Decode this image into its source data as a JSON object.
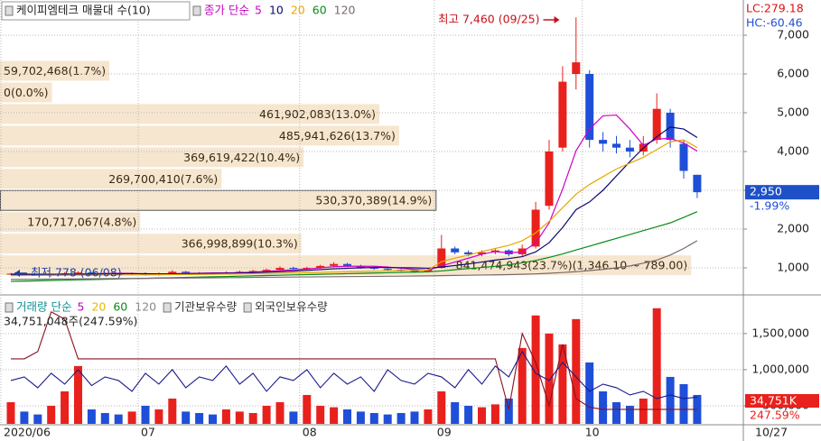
{
  "header": {
    "title": "케이피엠테크 매물대 수(10)"
  },
  "chart_data": [
    {
      "type": "candlestick",
      "legend_prefix": "종가 단순",
      "open": [
        840,
        850,
        830,
        810,
        820,
        860,
        880,
        860,
        850,
        840,
        860,
        820,
        850,
        900,
        870,
        860,
        850,
        880,
        900,
        920,
        950,
        1000,
        980,
        1000,
        1050,
        1100,
        1050,
        1000,
        980,
        950,
        930,
        900,
        1000,
        1500,
        1400,
        1350,
        1400,
        1450,
        1350,
        1550,
        2600,
        4100,
        6000,
        6000,
        4300,
        4200,
        4100,
        4000,
        4300,
        5000,
        4200,
        3400
      ],
      "high": [
        870,
        860,
        840,
        850,
        890,
        910,
        890,
        880,
        870,
        880,
        880,
        880,
        940,
        920,
        890,
        880,
        910,
        930,
        950,
        980,
        1040,
        1030,
        1030,
        1080,
        1150,
        1130,
        1080,
        1030,
        1000,
        970,
        950,
        980,
        1850,
        1550,
        1450,
        1450,
        1500,
        1480,
        1600,
        2700,
        4300,
        6200,
        7460,
        6100,
        4500,
        4400,
        4300,
        4400,
        5500,
        5100,
        4300,
        3400
      ],
      "low": [
        820,
        800,
        790,
        778,
        820,
        840,
        830,
        820,
        810,
        820,
        800,
        800,
        830,
        850,
        830,
        820,
        830,
        860,
        880,
        900,
        930,
        950,
        950,
        980,
        1020,
        1020,
        980,
        950,
        920,
        900,
        870,
        880,
        980,
        1350,
        1300,
        1300,
        1350,
        1300,
        1300,
        1500,
        2500,
        4000,
        5600,
        4100,
        4000,
        3950,
        3850,
        3900,
        4200,
        4100,
        3300,
        2800
      ],
      "close": [
        850,
        830,
        810,
        820,
        860,
        880,
        860,
        850,
        840,
        860,
        820,
        850,
        900,
        870,
        860,
        850,
        880,
        900,
        920,
        950,
        1000,
        980,
        1000,
        1050,
        1100,
        1050,
        1000,
        980,
        950,
        930,
        900,
        950,
        1500,
        1400,
        1350,
        1400,
        1450,
        1350,
        1500,
        2500,
        4000,
        5800,
        6300,
        4300,
        4200,
        4100,
        4000,
        4200,
        5100,
        4300,
        3500,
        2950
      ],
      "up_color": "#e8211d",
      "down_color": "#1f4fd8",
      "series": [
        {
          "name": "5",
          "color": "#d000c8",
          "values": [
            840,
            840,
            835,
            830,
            835,
            840,
            845,
            855,
            860,
            855,
            845,
            840,
            850,
            855,
            860,
            870,
            870,
            875,
            890,
            910,
            930,
            950,
            970,
            1000,
            1030,
            1040,
            1040,
            1040,
            1020,
            990,
            960,
            940,
            1050,
            1150,
            1250,
            1350,
            1420,
            1390,
            1410,
            1640,
            2160,
            3030,
            4020,
            4580,
            4920,
            4940,
            4580,
            4160,
            4320,
            4340,
            4220,
            4010
          ]
        },
        {
          "name": "10",
          "color": "#0a0a70",
          "values": [
            830,
            832,
            834,
            835,
            836,
            838,
            840,
            845,
            848,
            850,
            850,
            845,
            848,
            850,
            852,
            855,
            860,
            865,
            875,
            888,
            900,
            915,
            935,
            955,
            975,
            990,
            1000,
            1010,
            1010,
            1005,
            1000,
            990,
            1020,
            1060,
            1100,
            1150,
            1200,
            1240,
            1290,
            1410,
            1650,
            2040,
            2500,
            2700,
            3000,
            3370,
            3740,
            4090,
            4380,
            4630,
            4580,
            4360
          ]
        },
        {
          "name": "20",
          "color": "#e6a800",
          "values": [
            800,
            802,
            804,
            806,
            808,
            810,
            812,
            814,
            816,
            818,
            820,
            822,
            825,
            828,
            832,
            836,
            840,
            845,
            850,
            856,
            862,
            868,
            875,
            882,
            890,
            898,
            905,
            912,
            920,
            928,
            935,
            942,
            1160,
            1250,
            1330,
            1420,
            1500,
            1580,
            1700,
            1900,
            2200,
            2550,
            2900,
            3150,
            3350,
            3550,
            3700,
            3850,
            4050,
            4250,
            4300,
            4100
          ]
        },
        {
          "name": "60",
          "color": "#0a8a1a",
          "values": [
            650,
            658,
            666,
            674,
            682,
            690,
            698,
            706,
            714,
            722,
            730,
            738,
            746,
            754,
            762,
            770,
            778,
            786,
            794,
            802,
            810,
            818,
            826,
            834,
            842,
            850,
            858,
            866,
            874,
            882,
            890,
            898,
            920,
            950,
            980,
            1010,
            1040,
            1080,
            1130,
            1190,
            1270,
            1360,
            1460,
            1560,
            1660,
            1760,
            1860,
            1960,
            2060,
            2160,
            2300,
            2450
          ]
        },
        {
          "name": "120",
          "color": "#7a6a6a",
          "values": [
            700,
            703,
            706,
            709,
            712,
            715,
            718,
            721,
            724,
            727,
            730,
            733,
            736,
            739,
            742,
            745,
            748,
            751,
            754,
            757,
            760,
            763,
            766,
            769,
            772,
            775,
            778,
            781,
            784,
            787,
            790,
            793,
            800,
            805,
            810,
            815,
            820,
            825,
            835,
            845,
            860,
            880,
            900,
            930,
            960,
            1000,
            1050,
            1120,
            1200,
            1330,
            1500,
            1700
          ]
        }
      ],
      "ylim": [
        349,
        7907
      ],
      "yticks": [
        {
          "value": 1000,
          "label": "1,000"
        },
        {
          "value": 2000,
          "label": "2,000"
        },
        {
          "value": 3000,
          "label": "3,000"
        },
        {
          "value": 4000,
          "label": "4,000"
        },
        {
          "value": 5000,
          "label": "5,000"
        },
        {
          "value": 6000,
          "label": "6,000"
        },
        {
          "value": 7000,
          "label": "7,000"
        }
      ],
      "xticks": [
        {
          "value": 0,
          "label": "2020/06"
        },
        {
          "value": 10,
          "label": "07"
        },
        {
          "value": 22,
          "label": "08"
        },
        {
          "value": 32,
          "label": "09"
        },
        {
          "value": 43,
          "label": "10"
        }
      ],
      "last_date": "10/27",
      "high_label": "최고 7,460 (09/25)",
      "low_label": "최저 778 (06/08)",
      "lc": "LC:279.18",
      "hc": "HC:-60.46",
      "last_price": "2,950",
      "change": "-1.99%",
      "volume_profile": {
        "bins": [
          789,
          1346.1,
          1903.2,
          2460.3,
          3017.4,
          3574.5,
          4131.6,
          4688.7,
          5245.8,
          5802.9,
          6360
        ],
        "values": [
          841474943,
          366998899,
          170717067,
          530370389,
          269700410,
          369619422,
          485941626,
          461902083,
          0,
          59702468
        ],
        "value_labels": [
          "841,474,943(23.7%)(1,346.10 ~ 789.00)",
          "366,998,899(10.3%)",
          "170,717,067(4.8%)",
          "530,370,389(14.9%)",
          "269,700,410(7.6%)",
          "369,619,422(10.4%)",
          "485,941,626(13.7%)",
          "461,902,083(13.0%)",
          "0(0.0%)",
          "59,702,468(1.7%)"
        ],
        "xlim": [
          0,
          905000000
        ],
        "color": "#f6e6cf"
      }
    },
    {
      "type": "bar",
      "legend_prefix": "거래량 단순",
      "ma_legend": [
        {
          "name": "5",
          "color": "#c000c0"
        },
        {
          "name": "20",
          "color": "#e6b800"
        },
        {
          "name": "60",
          "color": "#0a8a1a"
        },
        {
          "name": "120",
          "color": "#8a8a8a"
        }
      ],
      "values": [
        550000,
        420000,
        380000,
        500000,
        700000,
        1050000,
        450000,
        400000,
        380000,
        420000,
        500000,
        450000,
        600000,
        420000,
        400000,
        380000,
        450000,
        420000,
        400000,
        500000,
        550000,
        420000,
        650000,
        500000,
        480000,
        450000,
        420000,
        400000,
        380000,
        400000,
        420000,
        450000,
        700000,
        550000,
        500000,
        480000,
        520000,
        600000,
        1300000,
        1750000,
        1500000,
        1350000,
        1700000,
        1100000,
        700000,
        550000,
        500000,
        600000,
        1850000,
        900000,
        800000,
        650000
      ],
      "series": [
        {
          "name": "기관보유수량",
          "color": "#8a1020",
          "values": [
            1150000,
            1150000,
            1250000,
            1800000,
            1700000,
            1150000,
            1150000,
            1150000,
            1150000,
            1150000,
            1150000,
            1150000,
            1150000,
            1150000,
            1150000,
            1150000,
            1150000,
            1150000,
            1150000,
            1150000,
            1150000,
            1150000,
            1150000,
            1150000,
            1150000,
            1150000,
            1150000,
            1150000,
            1150000,
            1150000,
            1150000,
            1150000,
            1150000,
            1150000,
            1150000,
            1150000,
            1150000,
            450000,
            1500000,
            1100000,
            500000,
            1350000,
            600000,
            480000,
            450000,
            450000,
            450000,
            450000,
            450000,
            450000,
            450000,
            450000
          ]
        },
        {
          "name": "외국인보유수량",
          "color": "#1a1a8c",
          "values": [
            850000,
            900000,
            750000,
            950000,
            800000,
            1000000,
            780000,
            900000,
            850000,
            700000,
            950000,
            800000,
            1000000,
            750000,
            900000,
            850000,
            1050000,
            800000,
            950000,
            700000,
            900000,
            850000,
            1000000,
            750000,
            950000,
            800000,
            900000,
            700000,
            1000000,
            850000,
            800000,
            950000,
            900000,
            750000,
            1000000,
            800000,
            1050000,
            900000,
            1250000,
            950000,
            850000,
            1100000,
            900000,
            700000,
            800000,
            750000,
            650000,
            700000,
            600000,
            650000,
            600000,
            620000
          ]
        }
      ],
      "ylim": [
        250000,
        1960000
      ],
      "yticks": [
        {
          "value": 500000,
          "label": "500,000"
        },
        {
          "value": 1000000,
          "label": "1,000,000"
        },
        {
          "value": 1500000,
          "label": "1,500,000"
        }
      ],
      "current_label": "34,751,048주(247.59%)",
      "tag": "34,751K",
      "tag_ratio": "247.59%"
    }
  ]
}
